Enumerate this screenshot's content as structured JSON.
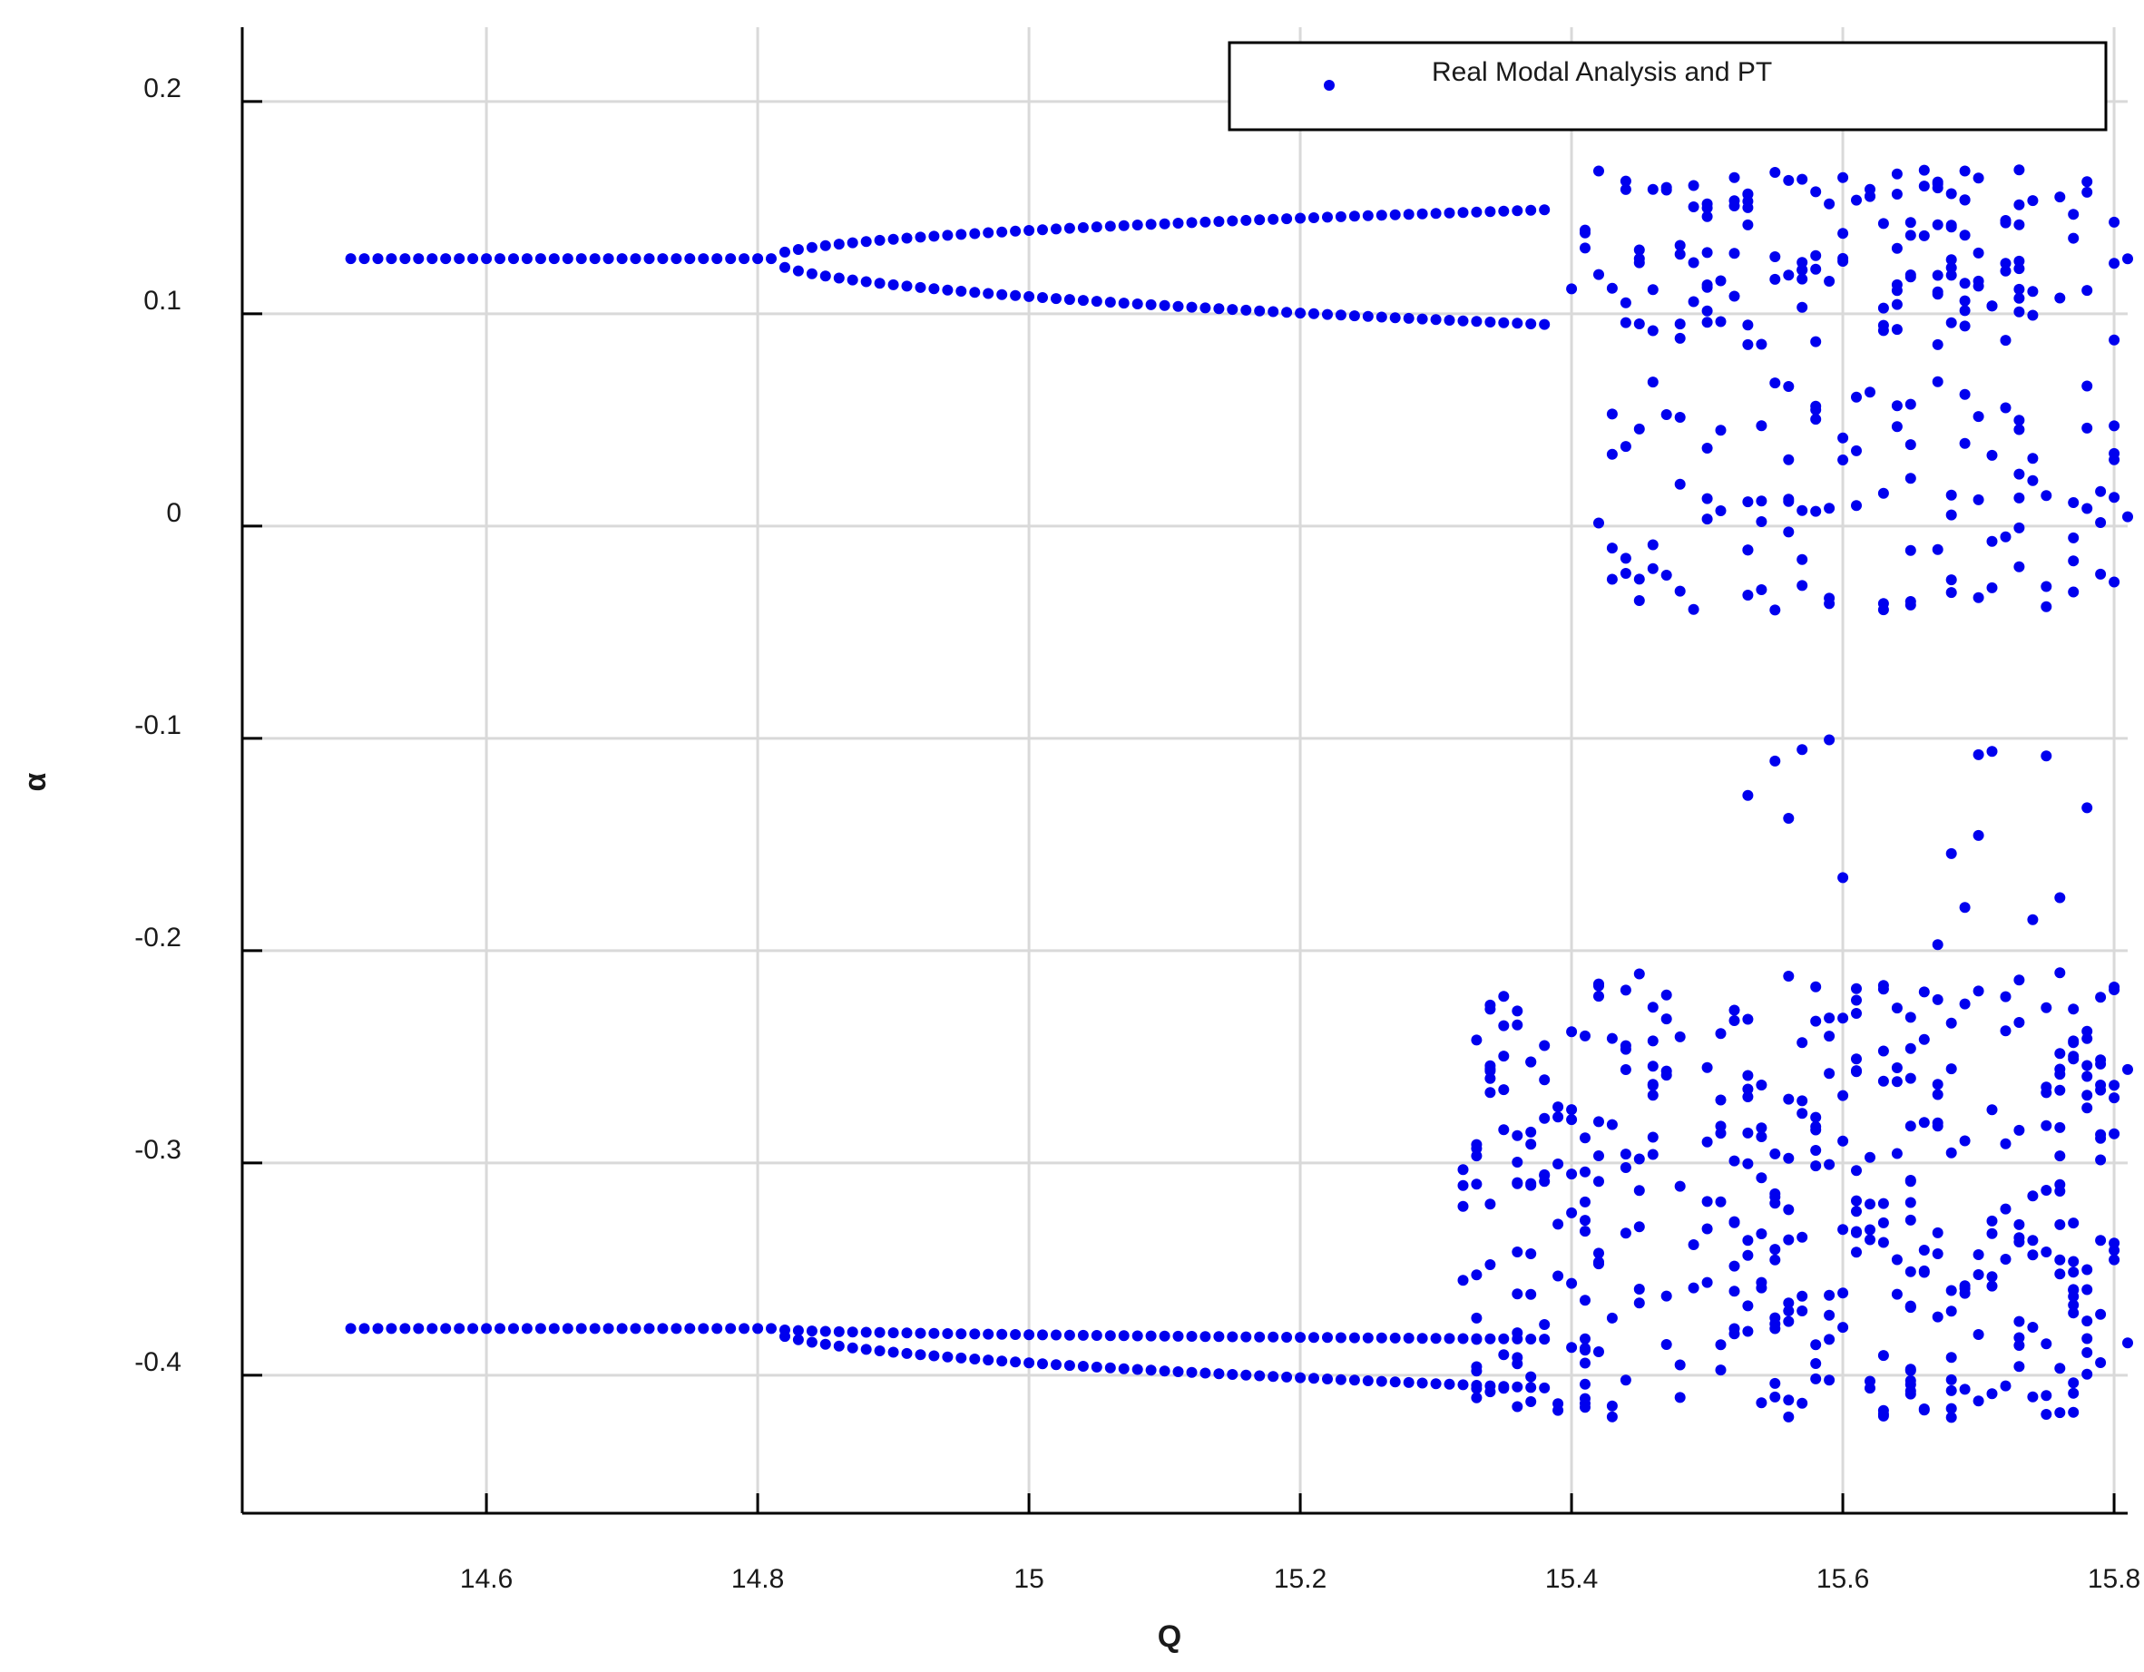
{
  "chart_data": {
    "type": "scatter",
    "xlabel": "Q",
    "ylabel": "α",
    "xlim": [
      14.42,
      15.81
    ],
    "ylim": [
      -0.465,
      0.235
    ],
    "xticks": [
      14.6,
      14.8,
      15,
      15.2,
      15.4,
      15.6,
      15.8
    ],
    "xtick_labels": [
      "14.6",
      "14.8",
      "15",
      "15.2",
      "15.4",
      "15.6",
      "15.8"
    ],
    "yticks": [
      0.2,
      0.1,
      0,
      -0.1,
      -0.2,
      -0.3,
      -0.4
    ],
    "ytick_labels": [
      "0.2",
      "0.1",
      "0",
      "-0.1",
      "-0.2",
      "-0.3",
      "-0.4"
    ],
    "grid": true,
    "legend_position": "top-right",
    "series": [
      {
        "name": "Real Modal Analysis and PT",
        "color": "#0000ee",
        "marker": "dot",
        "branches": [
          {
            "x_start": 14.5,
            "x_end": 15.38,
            "y_fork": 0.126,
            "q_fork": 14.81,
            "y_end_upper": 0.149,
            "y_end_lower": 0.095
          },
          {
            "x_start": 14.5,
            "x_end": 15.38,
            "y_fork": -0.378,
            "q_fork": 14.81,
            "y_end_upper": -0.383,
            "y_end_lower": -0.406
          }
        ],
        "regions": [
          {
            "x_range": [
              15.4,
              15.81
            ],
            "y_range": [
              0.085,
              0.168
            ],
            "count": 150
          },
          {
            "x_range": [
              15.42,
              15.81
            ],
            "y_range": [
              -0.04,
              0.07
            ],
            "count": 110
          },
          {
            "x_range": [
              15.5,
              15.81
            ],
            "y_range": [
              -0.2,
              -0.09
            ],
            "count": 16
          },
          {
            "x_range": [
              15.32,
              15.81
            ],
            "y_range": [
              -0.42,
              -0.21
            ],
            "count": 420
          }
        ]
      }
    ]
  }
}
